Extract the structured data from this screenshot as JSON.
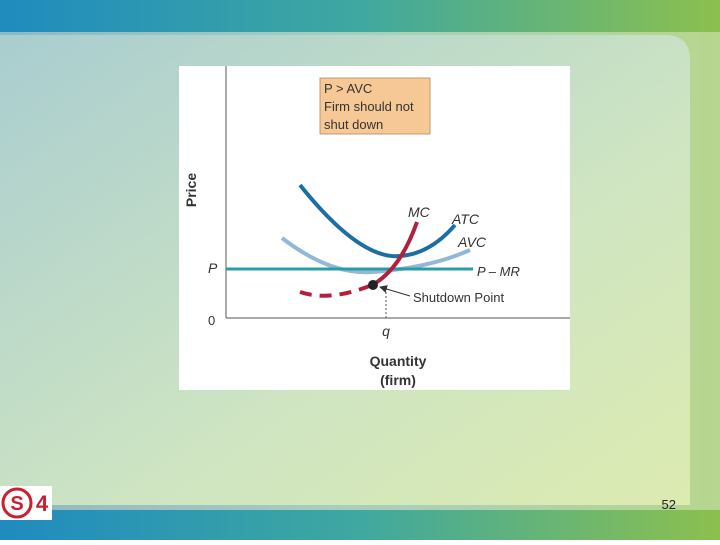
{
  "slide": {
    "page_number": "52",
    "logo": {
      "letter": "S",
      "digit": "4"
    },
    "diagram": {
      "callout": [
        "P > AVC",
        "Firm should not",
        "shut down"
      ],
      "y_axis_label": "Price",
      "x_axis_label": [
        "Quantity",
        "(firm)"
      ],
      "origin_label": "0",
      "price_label": "P",
      "quantity_label": "q",
      "curves": {
        "mc": "MC",
        "atc": "ATC",
        "avc": "AVC",
        "price_line": "P – MR"
      },
      "point_label": "Shutdown Point"
    }
  }
}
